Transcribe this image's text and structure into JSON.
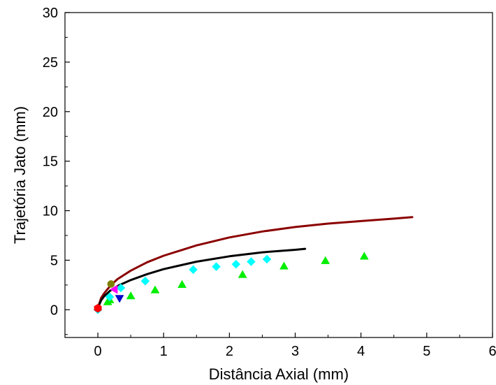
{
  "chart_data": {
    "type": "scatter",
    "title": "",
    "xlabel": "Distância Axial (mm)",
    "ylabel": "Trajetória Jato (mm)",
    "xlim": [
      -0.5,
      6
    ],
    "ylim": [
      -2.8,
      30
    ],
    "x_ticks": [
      0,
      1,
      2,
      3,
      4,
      5,
      6
    ],
    "y_ticks": [
      0,
      5,
      10,
      15,
      20,
      25,
      30
    ],
    "x_tick_labels": [
      "0",
      "1",
      "2",
      "3",
      "4",
      "5",
      "6"
    ],
    "y_tick_labels": [
      "0",
      "5",
      "10",
      "15",
      "20",
      "25",
      "30"
    ],
    "grid": false,
    "legend": "none",
    "curves": [
      {
        "color": "#8b0000",
        "x": [
          0.02,
          0.05,
          0.1,
          0.2,
          0.3,
          0.5,
          0.75,
          1.0,
          1.5,
          2.0,
          2.5,
          3.0,
          3.5,
          4.0,
          4.5,
          4.78
        ],
        "y": [
          0.6,
          1.2,
          1.7,
          2.5,
          3.1,
          3.95,
          4.8,
          5.45,
          6.5,
          7.3,
          7.9,
          8.35,
          8.7,
          8.95,
          9.2,
          9.35
        ]
      },
      {
        "color": "#000000",
        "x": [
          0.02,
          0.05,
          0.1,
          0.2,
          0.3,
          0.5,
          0.75,
          1.0,
          1.5,
          2.0,
          2.5,
          3.0,
          3.15
        ],
        "y": [
          0.5,
          0.95,
          1.4,
          2.0,
          2.4,
          3.0,
          3.6,
          4.1,
          4.85,
          5.4,
          5.8,
          6.05,
          6.15
        ]
      }
    ],
    "series": [
      {
        "marker": "triangle-up",
        "color": "#00ee00",
        "x": [
          0.15,
          0.18,
          0.5,
          0.87,
          1.28,
          2.2,
          2.83,
          3.46,
          4.05
        ],
        "y": [
          0.8,
          1.0,
          1.4,
          2.0,
          2.55,
          3.55,
          4.4,
          4.95,
          5.4
        ]
      },
      {
        "marker": "diamond",
        "color": "#00ffff",
        "x": [
          0.0,
          0.18,
          0.35,
          0.72,
          1.45,
          1.8,
          2.1,
          2.33,
          2.57
        ],
        "y": [
          0.0,
          1.3,
          2.2,
          2.9,
          4.05,
          4.35,
          4.6,
          4.85,
          5.1
        ]
      },
      {
        "marker": "triangle-left",
        "color": "#ff00ff",
        "x": [
          0.25
        ],
        "y": [
          2.05
        ]
      },
      {
        "marker": "triangle-down",
        "color": "#0000cc",
        "x": [
          0.33
        ],
        "y": [
          1.15
        ]
      },
      {
        "marker": "circle",
        "color": "#808000",
        "x": [
          0.2
        ],
        "y": [
          2.6
        ]
      },
      {
        "marker": "hexagon",
        "color": "#ff0000",
        "x": [
          0.0
        ],
        "y": [
          0.15
        ]
      }
    ]
  }
}
